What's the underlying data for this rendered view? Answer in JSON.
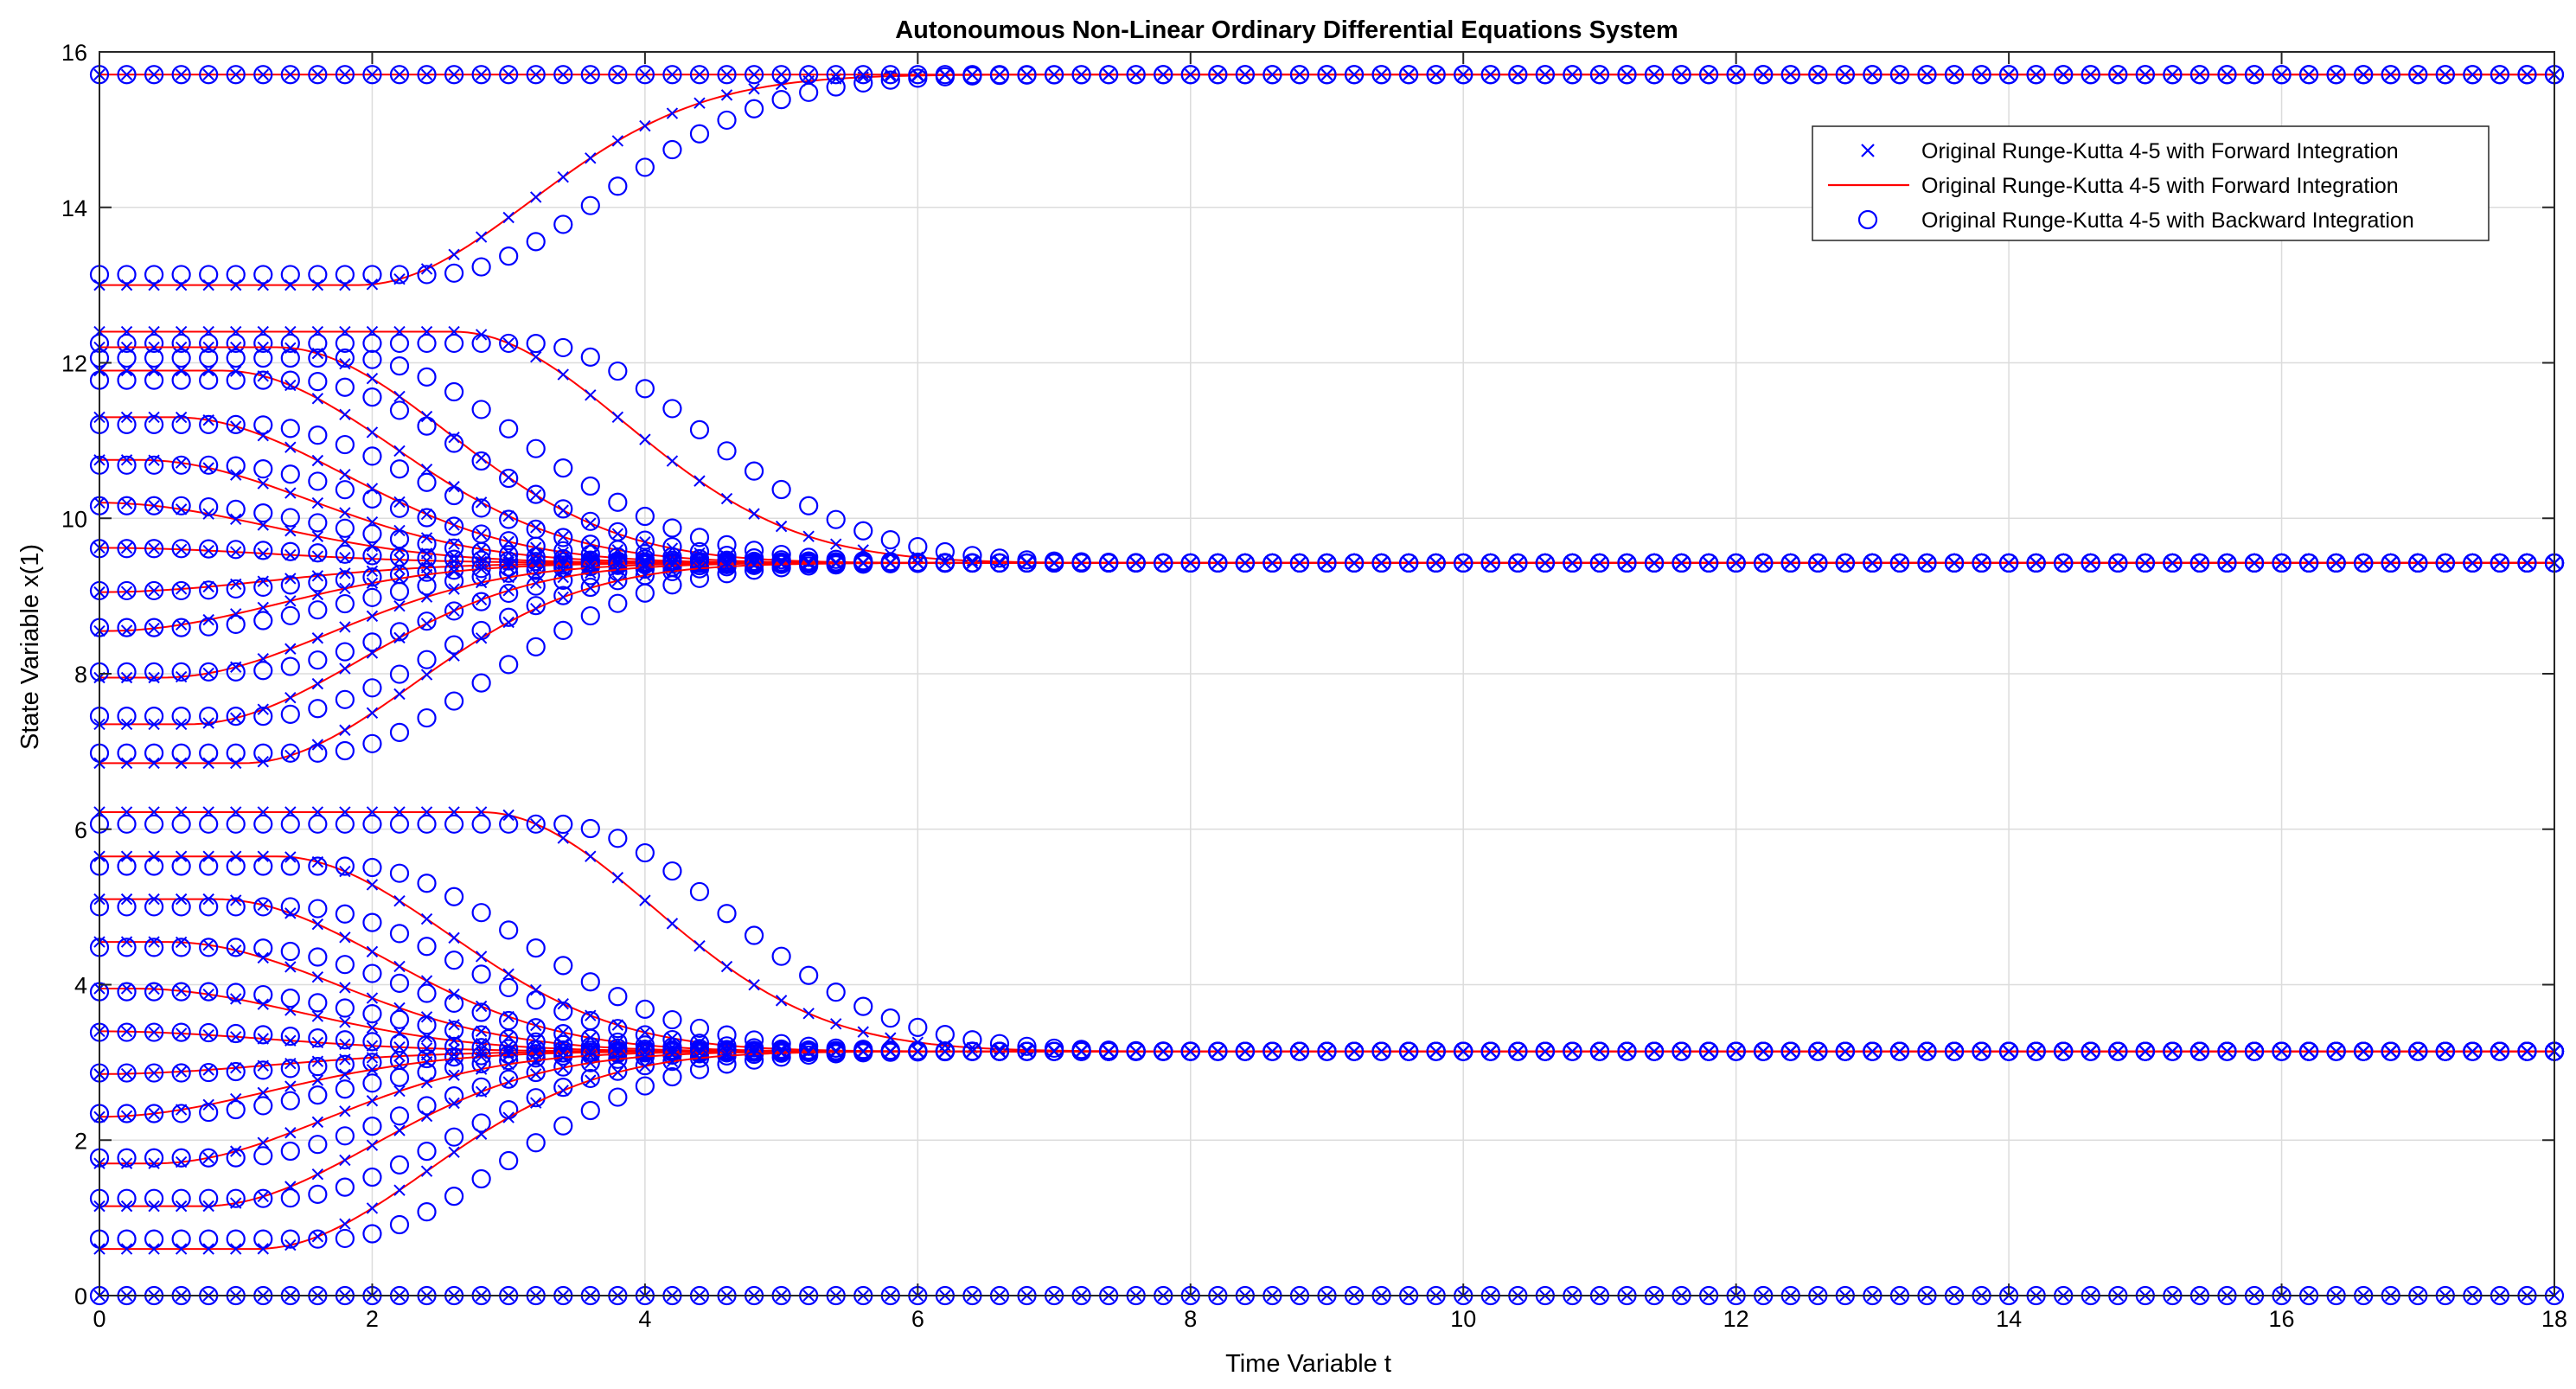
{
  "chart_data": {
    "type": "line",
    "title": "Autonoumous Non-Linear Ordinary Differential Equations System",
    "xlabel": "Time Variable t",
    "ylabel": "State Variable x(1)",
    "xlim": [
      0,
      18
    ],
    "ylim": [
      0,
      16
    ],
    "grid": true,
    "x_ticks": [
      "0",
      "2",
      "4",
      "6",
      "8",
      "10",
      "12",
      "14",
      "16",
      "18"
    ],
    "y_ticks": [
      "0",
      "2",
      "4",
      "6",
      "8",
      "10",
      "12",
      "14",
      "16"
    ],
    "legend_position": "top-right",
    "legend": [
      {
        "label": "Original Runge-Kutta 4-5 with Forward Integration",
        "marker": "x"
      },
      {
        "label": "Original Runge-Kutta 4-5 with Forward Integration",
        "marker": "line"
      },
      {
        "label": "Original Runge-Kutta 4-5 with Backward Integration",
        "marker": "o"
      }
    ],
    "colors": {
      "forward_markers": "#0000ff",
      "forward_line": "#ff0000",
      "backward_markers": "#0000ff"
    },
    "equilibria": [
      0,
      3.1416,
      9.4248,
      15.708
    ],
    "series": [
      {
        "x0": 13.0,
        "target": 15.708,
        "shift": 1.9
      },
      {
        "x0": 12.4,
        "target": 9.4248,
        "shift": 2.6
      },
      {
        "x0": 12.2,
        "target": 9.4248,
        "shift": 1.3
      },
      {
        "x0": 11.9,
        "target": 9.4248,
        "shift": 0.9
      },
      {
        "x0": 11.3,
        "target": 9.4248,
        "shift": 0.55
      },
      {
        "x0": 10.75,
        "target": 9.4248,
        "shift": 0.3
      },
      {
        "x0": 10.2,
        "target": 9.4248,
        "shift": 0.0
      },
      {
        "x0": 9.62,
        "target": 9.4248,
        "shift": 0.0
      },
      {
        "x0": 9.05,
        "target": 9.4248,
        "shift": 0.0
      },
      {
        "x0": 8.55,
        "target": 9.4248,
        "shift": 0.05
      },
      {
        "x0": 7.95,
        "target": 9.4248,
        "shift": 0.45
      },
      {
        "x0": 7.35,
        "target": 9.4248,
        "shift": 0.65
      },
      {
        "x0": 6.85,
        "target": 9.4248,
        "shift": 1.05
      },
      {
        "x0": 6.22,
        "target": 3.1416,
        "shift": 2.8
      },
      {
        "x0": 5.65,
        "target": 3.1416,
        "shift": 1.3
      },
      {
        "x0": 5.1,
        "target": 3.1416,
        "shift": 0.85
      },
      {
        "x0": 4.55,
        "target": 3.1416,
        "shift": 0.5
      },
      {
        "x0": 3.95,
        "target": 3.1416,
        "shift": 0.25
      },
      {
        "x0": 3.4,
        "target": 3.1416,
        "shift": 0.0
      },
      {
        "x0": 2.85,
        "target": 3.1416,
        "shift": 0.0
      },
      {
        "x0": 2.3,
        "target": 3.1416,
        "shift": 0.0
      },
      {
        "x0": 1.7,
        "target": 3.1416,
        "shift": 0.4
      },
      {
        "x0": 1.15,
        "target": 3.1416,
        "shift": 0.75
      },
      {
        "x0": 0.6,
        "target": 3.1416,
        "shift": 1.15
      },
      {
        "x0": 0.0,
        "target": 0.0,
        "shift": 0.0
      },
      {
        "x0": 15.708,
        "target": 15.708,
        "shift": 0.0
      }
    ]
  }
}
